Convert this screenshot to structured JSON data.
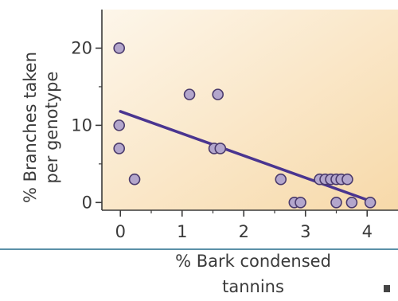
{
  "chart_data": {
    "type": "scatter",
    "title": "",
    "xlabel_line1": "% Bark condensed",
    "xlabel_line2": "tannins",
    "ylabel_line1": "% Branches taken",
    "ylabel_line2": "per genotype",
    "xlim": [
      -0.3,
      4.5
    ],
    "ylim": [
      -1,
      25
    ],
    "x_ticks": [
      0,
      1,
      2,
      3,
      4
    ],
    "x_tick_labels": [
      "0",
      "1",
      "2",
      "3",
      "4"
    ],
    "y_ticks": [
      0,
      10,
      20
    ],
    "y_tick_labels": [
      "0",
      "10",
      "20"
    ],
    "grid": false,
    "legend": "none",
    "series": [
      {
        "points": [
          {
            "x": -0.02,
            "y": 20
          },
          {
            "x": -0.02,
            "y": 10
          },
          {
            "x": -0.02,
            "y": 7
          },
          {
            "x": 0.23,
            "y": 3
          },
          {
            "x": 1.12,
            "y": 14
          },
          {
            "x": 1.58,
            "y": 14
          },
          {
            "x": 1.52,
            "y": 7
          },
          {
            "x": 1.62,
            "y": 7
          },
          {
            "x": 2.6,
            "y": 3
          },
          {
            "x": 2.82,
            "y": 0
          },
          {
            "x": 2.92,
            "y": 0
          },
          {
            "x": 3.23,
            "y": 3
          },
          {
            "x": 3.32,
            "y": 3
          },
          {
            "x": 3.41,
            "y": 3
          },
          {
            "x": 3.5,
            "y": 3
          },
          {
            "x": 3.58,
            "y": 3
          },
          {
            "x": 3.68,
            "y": 3
          },
          {
            "x": 3.5,
            "y": 0
          },
          {
            "x": 3.75,
            "y": 0
          },
          {
            "x": 4.05,
            "y": 0
          }
        ]
      }
    ],
    "trendline": {
      "x": [
        0,
        4.05
      ],
      "y": [
        11.8,
        0.2
      ]
    },
    "colors": {
      "point_fill": "#b3a6cc",
      "point_stroke": "#4a3a6c",
      "trendline": "#4a3590",
      "background_light": "#fdf6ea",
      "background_warm": "#f7d9a9",
      "axis": "#3a3a3a",
      "divider": "#5b91a8",
      "square_marker": "#444444"
    }
  }
}
